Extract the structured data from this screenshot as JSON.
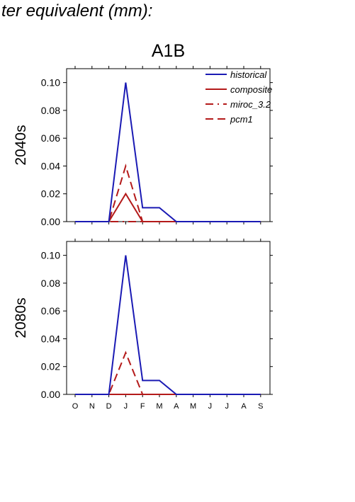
{
  "page": {
    "title": "ter equivalent (mm):"
  },
  "chart_data": {
    "type": "line",
    "title": "A1B",
    "categories": [
      "O",
      "N",
      "D",
      "J",
      "F",
      "M",
      "A",
      "M",
      "J",
      "J",
      "A",
      "S"
    ],
    "ylim": [
      0,
      0.11
    ],
    "yticks": [
      "0.00",
      "0.02",
      "0.04",
      "0.06",
      "0.08",
      "0.10"
    ],
    "grid": false,
    "legend": {
      "placement": "top-right",
      "entries": [
        {
          "name": "historical",
          "color": "#1a1ab4",
          "style": "solid"
        },
        {
          "name": "composite",
          "color": "#b41a1a",
          "style": "solid"
        },
        {
          "name": "miroc_3.2",
          "color": "#b41a1a",
          "style": "dash-dot"
        },
        {
          "name": "pcm1",
          "color": "#b41a1a",
          "style": "dashed"
        }
      ]
    },
    "panels": [
      {
        "label": "2040s",
        "series": [
          {
            "name": "historical",
            "values": [
              0,
              0,
              0,
              0.1,
              0.01,
              0.01,
              0,
              0,
              0,
              0,
              0,
              0
            ]
          },
          {
            "name": "composite",
            "values": [
              0,
              0,
              0,
              0.02,
              0,
              0,
              0,
              0,
              0,
              0,
              0,
              0
            ]
          },
          {
            "name": "miroc_3.2",
            "values": [
              0,
              0,
              0,
              0,
              0,
              0,
              0,
              0,
              0,
              0,
              0,
              0
            ]
          },
          {
            "name": "pcm1",
            "values": [
              0,
              0,
              0,
              0.04,
              0,
              0,
              0,
              0,
              0,
              0,
              0,
              0
            ]
          }
        ]
      },
      {
        "label": "2080s",
        "series": [
          {
            "name": "historical",
            "values": [
              0,
              0,
              0,
              0.1,
              0.01,
              0.01,
              0,
              0,
              0,
              0,
              0,
              0
            ]
          },
          {
            "name": "composite",
            "values": [
              0,
              0,
              0,
              0,
              0,
              0,
              0,
              0,
              0,
              0,
              0,
              0
            ]
          },
          {
            "name": "miroc_3.2",
            "values": [
              0,
              0,
              0,
              0,
              0,
              0,
              0,
              0,
              0,
              0,
              0,
              0
            ]
          },
          {
            "name": "pcm1",
            "values": [
              0,
              0,
              0,
              0.03,
              0,
              0,
              0,
              0,
              0,
              0,
              0,
              0
            ]
          }
        ]
      }
    ]
  }
}
